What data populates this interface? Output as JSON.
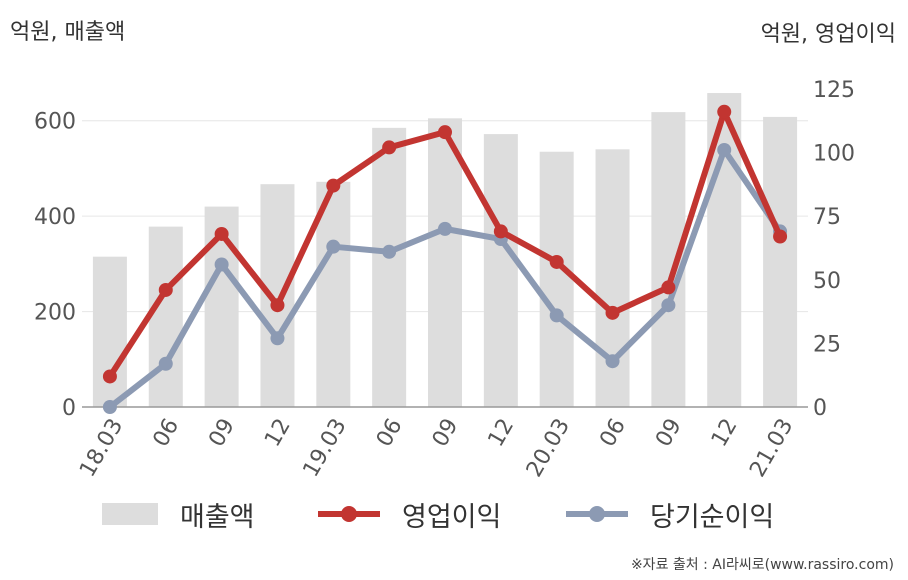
{
  "units": {
    "left": "억원, 매출액",
    "right": "억원, 영업이익"
  },
  "source": "※자료 출처 : AI라씨로(www.rassiro.com)",
  "chart_data": {
    "type": "bar+line",
    "categories": [
      "18.03",
      "06",
      "09",
      "12",
      "19.03",
      "06",
      "09",
      "12",
      "20.03",
      "06",
      "09",
      "12",
      "21.03"
    ],
    "left_axis": {
      "ylim": [
        0,
        700
      ],
      "ticks": [
        0,
        200,
        400,
        600
      ]
    },
    "right_axis": {
      "ylim": [
        0,
        131.25
      ],
      "ticks": [
        0,
        25,
        50,
        75,
        100,
        125
      ]
    },
    "grid": true,
    "legend_position": "bottom",
    "series": [
      {
        "name": "매출액",
        "type": "bar",
        "axis": "left",
        "color": "#dddddd",
        "values": [
          315,
          378,
          420,
          467,
          472,
          585,
          605,
          572,
          535,
          540,
          618,
          658,
          608
        ]
      },
      {
        "name": "영업이익",
        "type": "line",
        "axis": "right",
        "color": "#c23531",
        "values": [
          12,
          46,
          68,
          40,
          87,
          102,
          108,
          69,
          57,
          37,
          47,
          116,
          67
        ]
      },
      {
        "name": "당기순이익",
        "type": "line",
        "axis": "right",
        "color": "#8c9ab3",
        "values": [
          0,
          17,
          56,
          27,
          63,
          61,
          70,
          66,
          36,
          18,
          40,
          101,
          69
        ]
      }
    ]
  }
}
